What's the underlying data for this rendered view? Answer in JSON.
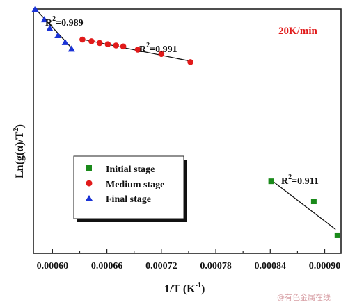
{
  "chart_data": {
    "type": "scatter",
    "xlabel_main": "1/T (K",
    "xlabel_sup": "-1",
    "xlabel_end": ")",
    "ylabel_main": "Ln(g(α)/T",
    "ylabel_sup": "2",
    "ylabel_end": ")",
    "xlim": [
      0.000579,
      0.000918
    ],
    "ylim": [
      0,
      10
    ],
    "x_ticks": [
      "0.00060",
      "0.00066",
      "0.00072",
      "0.00078",
      "0.00084",
      "0.00090"
    ],
    "x_tick_values": [
      0.0006,
      0.00066,
      0.00072,
      0.00078,
      0.00084,
      0.0009
    ],
    "annotation_rate": "20K/min",
    "series": [
      {
        "name": "Initial stage",
        "marker": "square",
        "color": "#1a8a1a",
        "points": [
          [
            0.000841,
            2.95
          ],
          [
            0.000888,
            2.13
          ],
          [
            0.000914,
            0.74
          ]
        ],
        "fit": [
          [
            0.000841,
            3.0
          ],
          [
            0.000912,
            0.98
          ]
        ],
        "r2_prefix": "R",
        "r2_sup": "2",
        "r2_value": "=0.911"
      },
      {
        "name": "Medium stage",
        "marker": "circle",
        "color": "#e11a1a",
        "points": [
          [
            0.000633,
            8.75
          ],
          [
            0.000643,
            8.68
          ],
          [
            0.000652,
            8.61
          ],
          [
            0.000661,
            8.56
          ],
          [
            0.00067,
            8.51
          ],
          [
            0.000678,
            8.47
          ],
          [
            0.000694,
            8.34
          ],
          [
            0.00072,
            8.16
          ],
          [
            0.000752,
            7.83
          ]
        ],
        "fit": [
          [
            0.000633,
            8.76
          ],
          [
            0.000752,
            7.87
          ]
        ],
        "r2_prefix": "R",
        "r2_sup": "2",
        "r2_value": "=0.991"
      },
      {
        "name": "Final stage",
        "marker": "triangle",
        "color": "#1a33d6",
        "points": [
          [
            0.000581,
            10.0
          ],
          [
            0.000591,
            9.57
          ],
          [
            0.000597,
            9.21
          ],
          [
            0.000606,
            8.92
          ],
          [
            0.000614,
            8.64
          ],
          [
            0.000621,
            8.37
          ]
        ],
        "fit": [
          [
            0.00058,
            10.05
          ],
          [
            0.000622,
            8.37
          ]
        ],
        "r2_prefix": "R",
        "r2_sup": "2",
        "r2_value": "=0.989"
      }
    ],
    "legend_position": "lower-left"
  },
  "watermark": "@有色金属在线"
}
